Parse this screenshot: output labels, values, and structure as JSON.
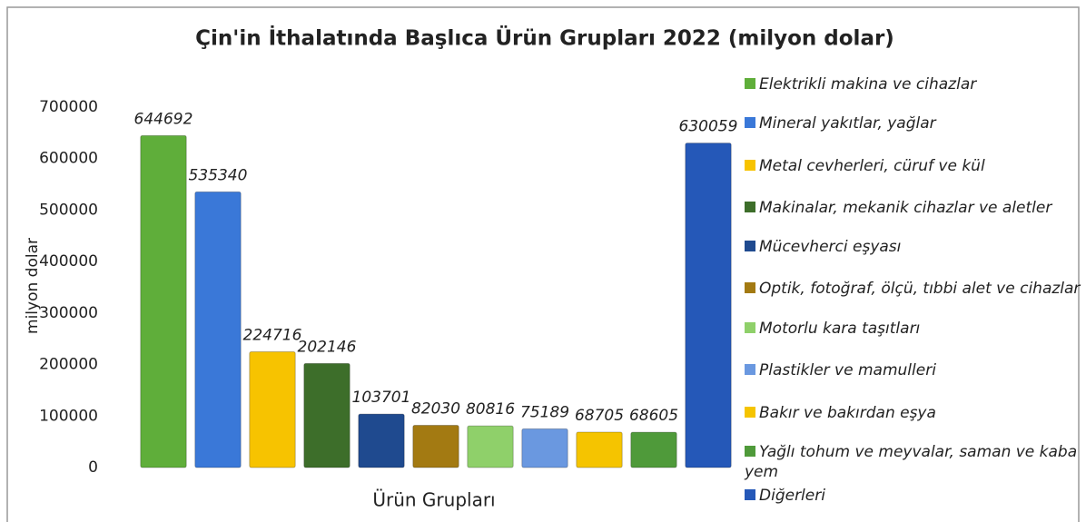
{
  "chart_data": {
    "type": "bar",
    "title": "Çin'in İthalatında Başlıca Ürün Grupları 2022 (milyon dolar)",
    "y_label": "milyon dolar",
    "x_label": "Ürün Grupları",
    "categories": [
      "Elektrikli makina ve cihazlar",
      "Mineral yakıtlar, yağlar",
      "Metal cevherleri, cüruf ve kül",
      "Makinalar, mekanik cihazlar ve aletler",
      "Mücevherci eşyası",
      "Optik, fotoğraf, ölçü, tıbbi alet ve cihazlar",
      "Motorlu kara taşıtları",
      "Plastikler ve mamulleri",
      "Bakır ve bakırdan eşya",
      "Yağlı tohum ve meyvalar, saman ve kaba yem",
      "Diğerleri"
    ],
    "values": [
      644692,
      535340,
      224716,
      202146,
      103701,
      82030,
      80816,
      75189,
      68705,
      68605,
      630059
    ],
    "colors": [
      "#5fae3a",
      "#3a78d8",
      "#f7c300",
      "#3d6e2a",
      "#1f4a8f",
      "#a37a12",
      "#8fd06a",
      "#6a98e0",
      "#f5c400",
      "#4f9a3a",
      "#2558b8"
    ],
    "ylim": [
      0,
      700000
    ],
    "yticks": [
      0,
      100000,
      200000,
      300000,
      400000,
      500000,
      600000,
      700000
    ],
    "grid": false,
    "legend": "right"
  }
}
